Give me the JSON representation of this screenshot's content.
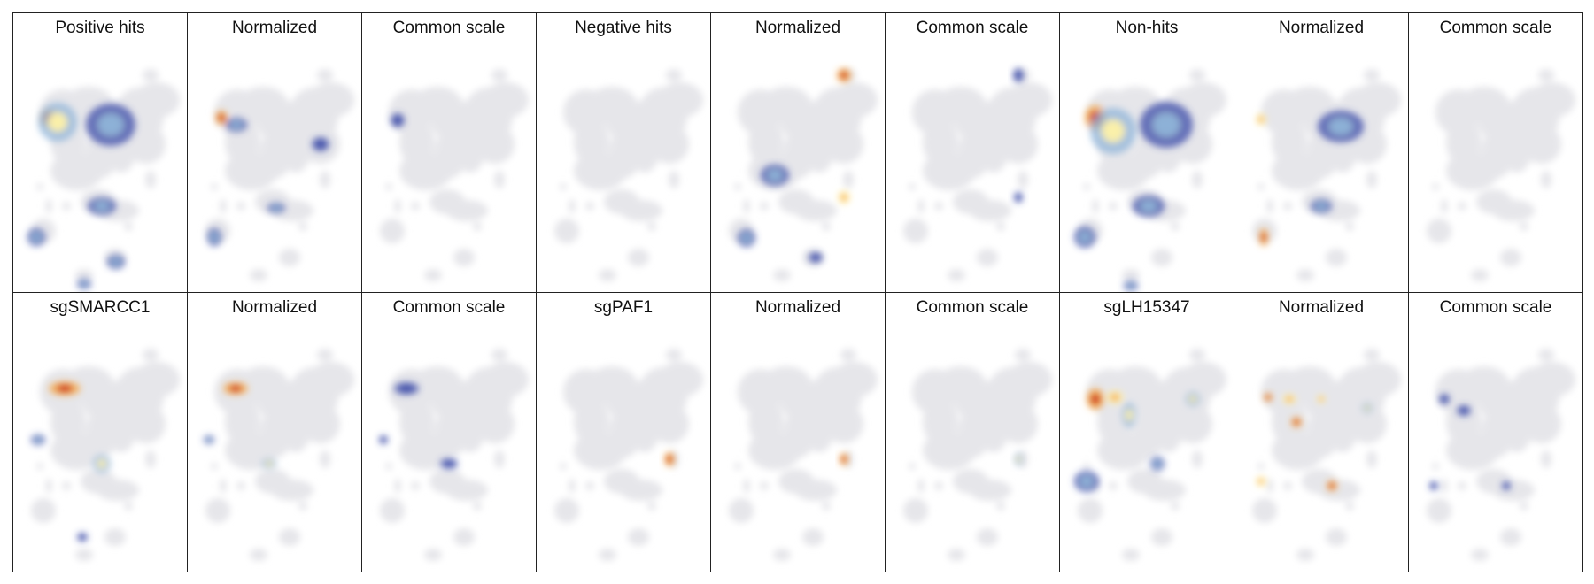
{
  "figure": {
    "colors": {
      "background_cells": "#e6e6ea",
      "border": "#222222",
      "colormap": [
        "#3b4aa8",
        "#8fb4d9",
        "#fff2a8",
        "#f7a33b",
        "#c8141a"
      ]
    }
  },
  "chart_data": {
    "type": "heatmap",
    "description_of_layout": "18 density panels over a shared cell embedding, 2 rows x 9 columns",
    "panels": [
      {
        "title": "Positive hits",
        "mode": "raw"
      },
      {
        "title": "Normalized",
        "mode": "normalized"
      },
      {
        "title": "Common scale",
        "mode": "common"
      },
      {
        "title": "Negative hits",
        "mode": "raw"
      },
      {
        "title": "Normalized",
        "mode": "normalized"
      },
      {
        "title": "Common scale",
        "mode": "common"
      },
      {
        "title": "Non-hits",
        "mode": "raw"
      },
      {
        "title": "Normalized",
        "mode": "normalized"
      },
      {
        "title": "Common scale",
        "mode": "common"
      },
      {
        "title": "sgSMARCC1",
        "mode": "raw"
      },
      {
        "title": "Normalized",
        "mode": "normalized"
      },
      {
        "title": "Common scale",
        "mode": "common"
      },
      {
        "title": "sgPAF1",
        "mode": "raw"
      },
      {
        "title": "Normalized",
        "mode": "normalized"
      },
      {
        "title": "Common scale",
        "mode": "common"
      },
      {
        "title": "sgLH15347",
        "mode": "raw"
      },
      {
        "title": "Normalized",
        "mode": "normalized"
      },
      {
        "title": "Common scale",
        "mode": "common"
      }
    ],
    "grid": false,
    "legend": "none"
  }
}
